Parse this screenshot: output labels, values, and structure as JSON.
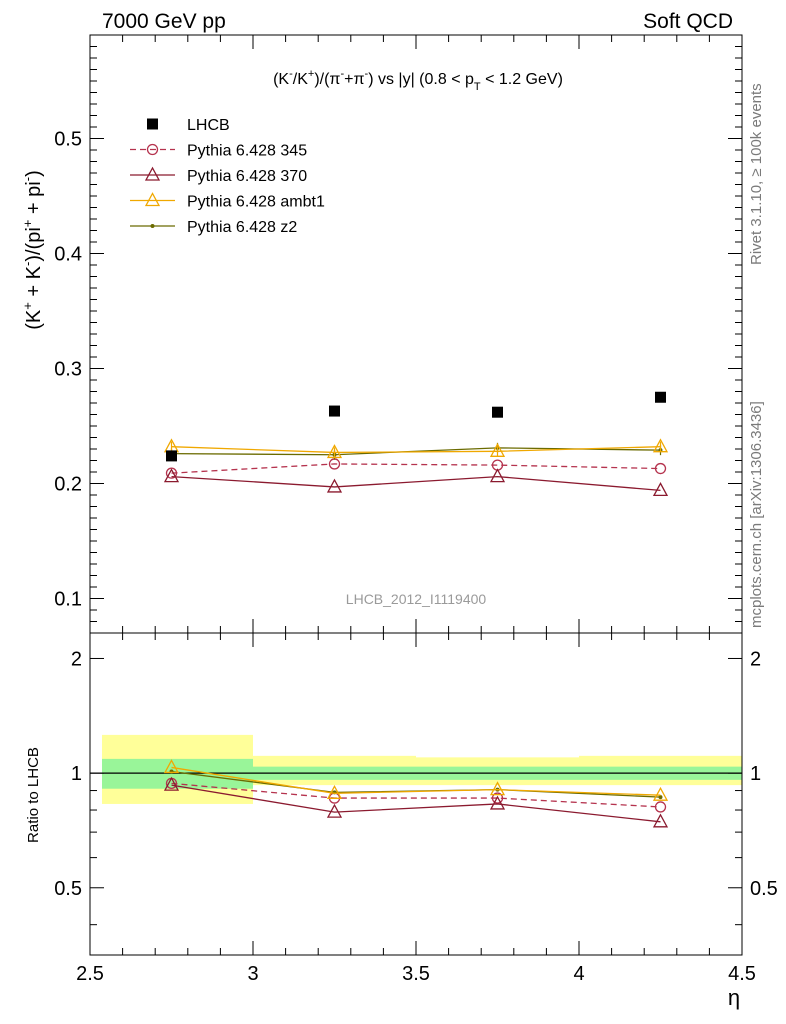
{
  "header": {
    "left": "7000 GeV pp",
    "right": "Soft QCD"
  },
  "side_labels": {
    "rivet": "Rivet 3.1.10, ≥ 100k events",
    "mcplots": "mcplots.cern.ch [arXiv:1306.3436]"
  },
  "analysis_id": "LHCB_2012_I1119400",
  "chart_data": [
    {
      "type": "scatter",
      "title": "(K⁻/K⁺)/(π⁻+π⁻) vs |y| (0.8 < p_T < 1.2 GeV)",
      "ylabel": "(K⁺ + K⁻)/(pi⁺ + pi⁻)",
      "xlabel": "η",
      "xlim": [
        2.5,
        4.5
      ],
      "ylim": [
        0.07,
        0.59
      ],
      "yticks": [
        0.1,
        0.2,
        0.3,
        0.4,
        0.5
      ],
      "xticks": [
        2.5,
        3,
        3.5,
        4,
        4.5
      ],
      "legend_position": "top-left",
      "x": [
        2.75,
        3.25,
        3.75,
        4.25
      ],
      "series": [
        {
          "name": "LHCB",
          "values": [
            0.224,
            0.263,
            0.262,
            0.275
          ],
          "color": "#000000",
          "marker": "square",
          "line": "none"
        },
        {
          "name": "Pythia 6.428 345",
          "values": [
            0.209,
            0.217,
            0.216,
            0.213
          ],
          "color": "#b5334e",
          "marker": "circle",
          "line": "dashed"
        },
        {
          "name": "Pythia 6.428 370",
          "values": [
            0.206,
            0.197,
            0.206,
            0.194
          ],
          "color": "#8b1a2f",
          "marker": "triangle",
          "line": "solid"
        },
        {
          "name": "Pythia 6.428 ambt1",
          "values": [
            0.232,
            0.227,
            0.228,
            0.232
          ],
          "color": "#f0a800",
          "marker": "triangle",
          "line": "solid"
        },
        {
          "name": "Pythia 6.428 z2",
          "values": [
            0.226,
            0.225,
            0.231,
            0.229
          ],
          "color": "#6b6b00",
          "marker": "dot",
          "line": "solid"
        }
      ]
    },
    {
      "type": "line",
      "ylabel": "Ratio to LHCB",
      "xlabel": "η",
      "xlim": [
        2.5,
        4.5
      ],
      "ylim": [
        0.333,
        2.333
      ],
      "yticks": [
        0.5,
        1,
        2
      ],
      "xticks": [
        2.5,
        3,
        3.5,
        4,
        4.5
      ],
      "bands": [
        {
          "x0": 2.5,
          "x1": 3.0,
          "inner": [
            0.91,
            1.09
          ],
          "outer": [
            0.83,
            1.26
          ]
        },
        {
          "x0": 3.0,
          "x1": 3.5,
          "inner": [
            0.96,
            1.04
          ],
          "outer": [
            0.93,
            1.11
          ]
        },
        {
          "x0": 3.5,
          "x1": 4.0,
          "inner": [
            0.96,
            1.04
          ],
          "outer": [
            0.93,
            1.1
          ]
        },
        {
          "x0": 4.0,
          "x1": 4.5,
          "inner": [
            0.96,
            1.04
          ],
          "outer": [
            0.93,
            1.11
          ]
        }
      ],
      "reference": 1,
      "x": [
        2.75,
        3.25,
        3.75,
        4.25
      ],
      "series": [
        {
          "name": "Pythia 6.428 345",
          "values": [
            0.94,
            0.86,
            0.86,
            0.815
          ],
          "color": "#b5334e",
          "marker": "circle",
          "line": "dashed"
        },
        {
          "name": "Pythia 6.428 370",
          "values": [
            0.93,
            0.79,
            0.83,
            0.745
          ],
          "color": "#8b1a2f",
          "marker": "triangle",
          "line": "solid"
        },
        {
          "name": "Pythia 6.428 ambt1",
          "values": [
            1.035,
            0.885,
            0.905,
            0.875
          ],
          "color": "#f0a800",
          "marker": "triangle",
          "line": "solid"
        },
        {
          "name": "Pythia 6.428 z2",
          "values": [
            1.01,
            0.89,
            0.905,
            0.865
          ],
          "color": "#6b6b00",
          "marker": "dot",
          "line": "solid"
        }
      ]
    }
  ],
  "legend": [
    {
      "label": "LHCB"
    },
    {
      "label": "Pythia 6.428 345"
    },
    {
      "label": "Pythia 6.428 370"
    },
    {
      "label": "Pythia 6.428 ambt1"
    },
    {
      "label": "Pythia 6.428 z2"
    }
  ]
}
